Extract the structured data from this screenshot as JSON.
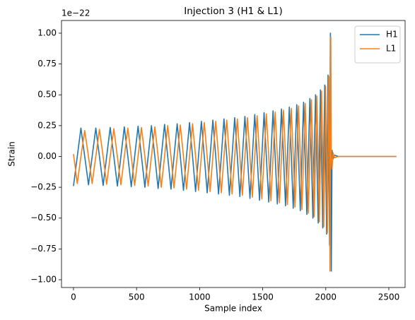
{
  "chart_data": {
    "type": "line",
    "title": "Injection 3 (H1 & L1)",
    "xlabel": "Sample index",
    "ylabel": "Strain",
    "y_offset_text": "1e−22",
    "x": [
      0,
      30,
      59,
      89,
      119,
      148,
      177,
      206,
      235,
      263,
      291,
      320,
      348,
      376,
      403,
      431,
      458,
      485,
      512,
      539,
      566,
      592,
      618,
      645,
      671,
      696,
      722,
      747,
      773,
      797,
      822,
      847,
      872,
      896,
      920,
      944,
      968,
      991,
      1014,
      1037,
      1060,
      1083,
      1105,
      1128,
      1150,
      1172,
      1193,
      1215,
      1236,
      1257,
      1278,
      1299,
      1319,
      1339,
      1359,
      1379,
      1399,
      1418,
      1437,
      1456,
      1475,
      1493,
      1511,
      1529,
      1548,
      1565,
      1582,
      1599,
      1616,
      1633,
      1649,
      1665,
      1681,
      1696,
      1711,
      1727,
      1742,
      1756,
      1770,
      1784,
      1798,
      1811,
      1824,
      1837,
      1850,
      1862,
      1874,
      1886,
      1898,
      1908,
      1919,
      1929,
      1940,
      1949,
      1958,
      1967,
      1976,
      1984,
      1992,
      1999,
      2007,
      2013,
      2018,
      2024,
      2030,
      2033,
      2037,
      2040,
      2044,
      2050,
      2058,
      2070,
      2100,
      2560
    ],
    "series": [
      {
        "name": "H1",
        "color": "#1f77b4",
        "values": [
          -0.24,
          0,
          0.23,
          0,
          -0.23,
          0,
          0.23,
          0,
          -0.235,
          0,
          0.235,
          0,
          -0.24,
          0,
          0.24,
          0,
          -0.245,
          0,
          0.245,
          0,
          -0.25,
          0,
          0.25,
          0,
          -0.26,
          0,
          0.26,
          0,
          -0.265,
          0,
          0.265,
          0,
          -0.275,
          0,
          0.275,
          0,
          -0.285,
          0,
          0.285,
          0,
          -0.295,
          0,
          0.295,
          0,
          -0.305,
          0,
          0.305,
          0,
          -0.315,
          0,
          0.315,
          0,
          -0.325,
          0,
          0.325,
          0,
          -0.34,
          0,
          0.34,
          0,
          -0.355,
          0,
          0.355,
          0,
          -0.37,
          0,
          0.37,
          0,
          -0.385,
          0,
          0.385,
          0,
          -0.4,
          0,
          0.4,
          0,
          -0.42,
          0,
          0.42,
          0,
          -0.44,
          0,
          0.44,
          0,
          -0.47,
          0,
          0.47,
          0,
          -0.5,
          0,
          0.5,
          0,
          -0.54,
          0,
          0.54,
          0,
          -0.58,
          0,
          0.58,
          0,
          -0.63,
          0,
          0.66,
          0,
          -0.72,
          0,
          1.0,
          0,
          -0.93,
          0.05,
          -0.02,
          0.01,
          0,
          0
        ]
      },
      {
        "name": "L1",
        "color": "#ff7f0e",
        "values": [
          0.02,
          -0.22,
          0,
          0.21,
          0,
          -0.22,
          0,
          0.22,
          0,
          -0.225,
          0,
          0.225,
          0,
          -0.23,
          0,
          0.23,
          0,
          -0.235,
          0,
          0.235,
          0,
          -0.24,
          0,
          0.24,
          0,
          -0.25,
          0,
          0.25,
          0,
          -0.255,
          0,
          0.255,
          0,
          -0.265,
          0,
          0.265,
          0,
          -0.275,
          0,
          0.275,
          0,
          -0.285,
          0,
          0.285,
          0,
          -0.295,
          0,
          0.295,
          0,
          -0.305,
          0,
          0.305,
          0,
          -0.315,
          0,
          0.315,
          0,
          -0.33,
          0,
          0.33,
          0,
          -0.345,
          0,
          0.345,
          0,
          -0.36,
          0,
          0.36,
          0,
          -0.375,
          0,
          0.375,
          0,
          -0.39,
          0,
          0.39,
          0,
          -0.41,
          0,
          0.41,
          0,
          -0.43,
          0,
          0.43,
          0,
          -0.46,
          0,
          0.46,
          0,
          -0.49,
          0,
          0.49,
          0,
          -0.53,
          0,
          0.53,
          0,
          -0.57,
          0,
          0.57,
          0,
          -0.62,
          0,
          0.65,
          0,
          -0.93,
          0,
          0.97,
          0,
          -0.1,
          0.03,
          -0.01,
          0,
          0
        ]
      }
    ],
    "xlim": [
      -95,
      2629
    ],
    "xticks": [
      0,
      500,
      1000,
      1500,
      2000,
      2500
    ],
    "ylim": [
      -1.063,
      1.103
    ],
    "yticks": [
      {
        "value": -1.0,
        "label": "−1.00"
      },
      {
        "value": -0.75,
        "label": "−0.75"
      },
      {
        "value": -0.5,
        "label": "−0.50"
      },
      {
        "value": -0.25,
        "label": "−0.25"
      },
      {
        "value": 0,
        "label": "0.00"
      },
      {
        "value": 0.25,
        "label": "0.25"
      },
      {
        "value": 0.5,
        "label": "0.50"
      },
      {
        "value": 0.75,
        "label": "0.75"
      },
      {
        "value": 1.0,
        "label": "1.00"
      }
    ],
    "grid": false,
    "legend": "upper right"
  }
}
